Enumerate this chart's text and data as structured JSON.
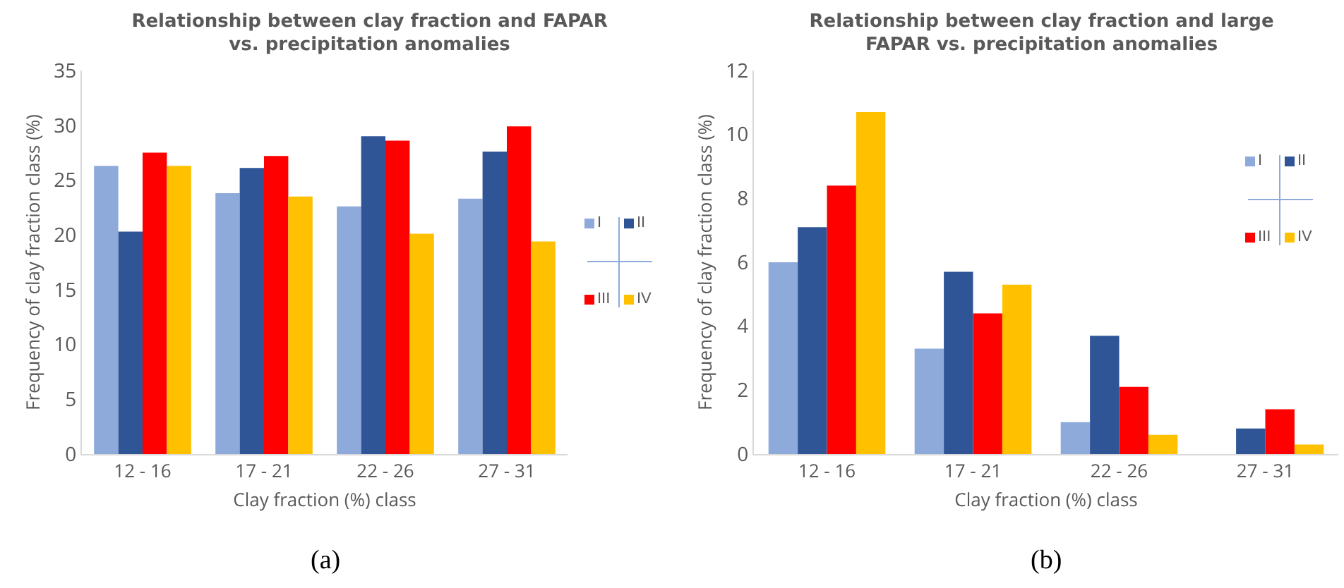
{
  "chart_data": [
    {
      "type": "bar",
      "title": "Relationship between clay fraction and FAPAR vs. precipitation anomalies",
      "xlabel": "Clay fraction (%) class",
      "ylabel": "Frequency of clay fraction class (%)",
      "annotations": [
        "(a)"
      ],
      "categories": [
        "12 - 16",
        "17 - 21",
        "22 - 26",
        "27 - 31"
      ],
      "series": [
        {
          "name": "I",
          "color": "#8eaadb",
          "values": [
            26.3,
            23.8,
            22.6,
            23.3
          ]
        },
        {
          "name": "II",
          "color": "#2f5597",
          "values": [
            20.3,
            26.1,
            29.0,
            27.6
          ]
        },
        {
          "name": "III",
          "color": "#ff0000",
          "values": [
            27.5,
            27.2,
            28.6,
            29.9
          ]
        },
        {
          "name": "IV",
          "color": "#ffc000",
          "values": [
            26.3,
            23.5,
            20.1,
            19.4
          ]
        }
      ],
      "ylim": [
        0,
        35
      ],
      "yticks": [
        0,
        5,
        10,
        15,
        20,
        25,
        30,
        35
      ],
      "grid": false,
      "legend": "right"
    },
    {
      "type": "bar",
      "title": "Relationship between clay fraction and large FAPAR vs. precipitation anomalies",
      "xlabel": "Clay fraction (%) class",
      "ylabel": "Frequency of clay fraction class (%)",
      "annotations": [
        "(b)"
      ],
      "categories": [
        "12 - 16",
        "17 - 21",
        "22 - 26",
        "27 - 31"
      ],
      "series": [
        {
          "name": "I",
          "color": "#8eaadb",
          "values": [
            6.0,
            3.3,
            1.0,
            null
          ]
        },
        {
          "name": "II",
          "color": "#2f5597",
          "values": [
            7.1,
            5.7,
            3.7,
            0.8
          ]
        },
        {
          "name": "III",
          "color": "#ff0000",
          "values": [
            8.4,
            4.4,
            2.1,
            1.4
          ]
        },
        {
          "name": "IV",
          "color": "#ffc000",
          "values": [
            10.7,
            5.3,
            0.6,
            0.3
          ]
        }
      ],
      "ylim": [
        0,
        12
      ],
      "yticks": [
        0,
        2,
        4,
        6,
        8,
        10,
        12
      ],
      "grid": false,
      "legend": "top right"
    }
  ]
}
